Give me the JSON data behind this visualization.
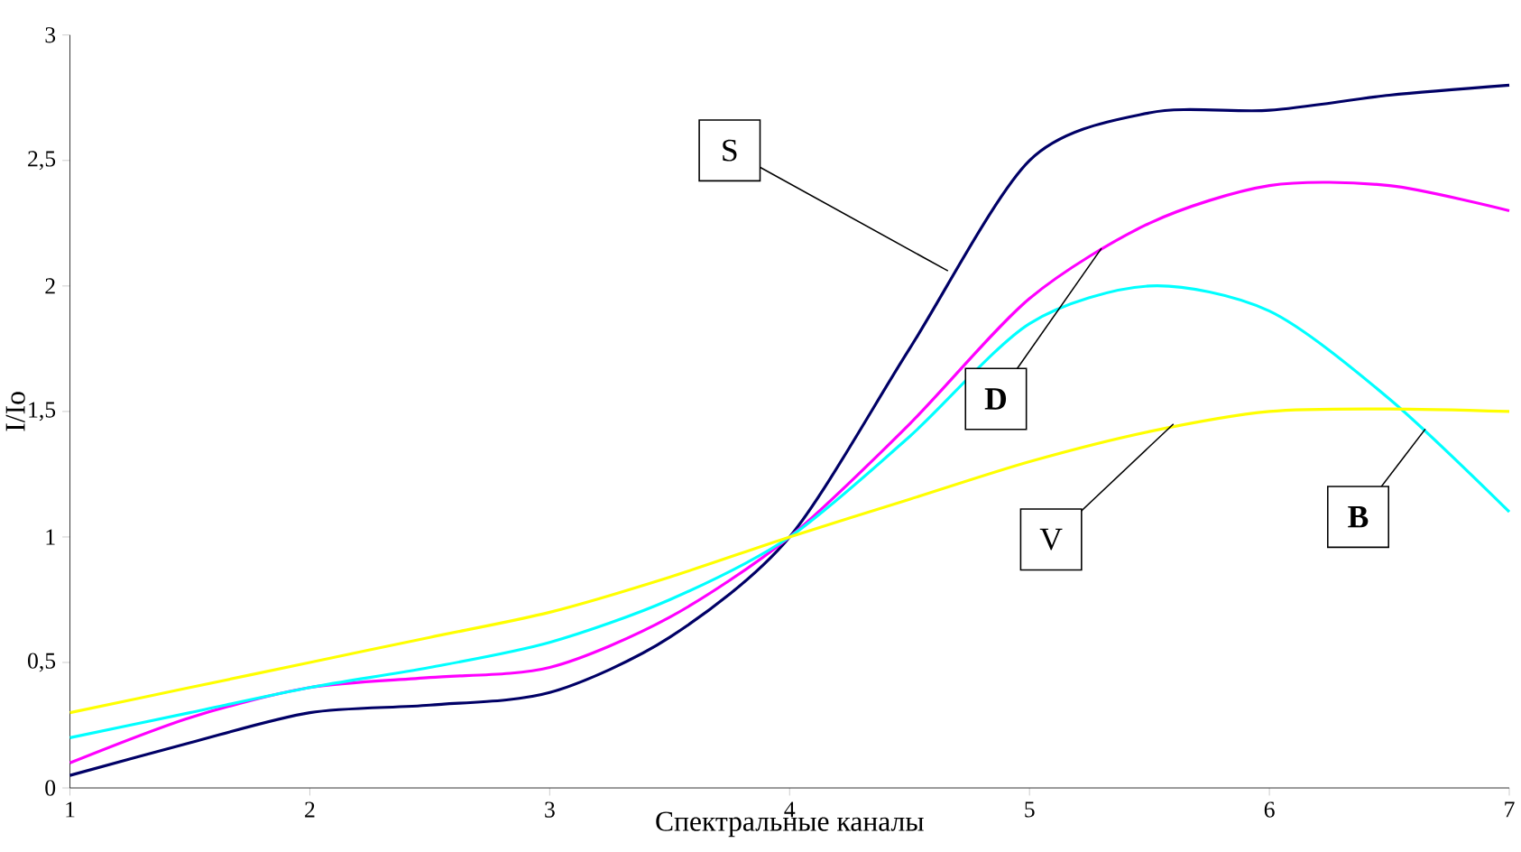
{
  "chart_data": {
    "type": "line",
    "xlabel": "Спектральные каналы",
    "ylabel": "I/Io",
    "x": [
      1,
      1.5,
      2,
      2.5,
      3,
      3.5,
      4,
      4.5,
      5,
      5.5,
      6,
      6.5,
      7
    ],
    "series": [
      {
        "color": "#000066",
        "values": [
          0.05,
          0.18,
          0.3,
          0.33,
          0.38,
          0.6,
          1.0,
          1.75,
          2.5,
          2.69,
          2.7,
          2.76,
          2.8
        ]
      },
      {
        "color": "#ff00ff",
        "values": [
          0.1,
          0.28,
          0.4,
          0.44,
          0.48,
          0.68,
          1.0,
          1.45,
          1.95,
          2.25,
          2.4,
          2.4,
          2.3
        ]
      },
      {
        "color": "#00ffff",
        "values": [
          0.2,
          0.3,
          0.4,
          0.48,
          0.58,
          0.75,
          1.0,
          1.4,
          1.85,
          2.0,
          1.9,
          1.55,
          1.1
        ]
      },
      {
        "color": "#ffff00",
        "values": [
          0.3,
          0.4,
          0.5,
          0.6,
          0.7,
          0.84,
          1.0,
          1.15,
          1.3,
          1.42,
          1.5,
          1.51,
          1.5
        ]
      }
    ],
    "annotations": [
      {
        "text": "S",
        "x": 4.66,
        "y": 2.06
      },
      {
        "text": "D",
        "x": 5.3,
        "y": 2.15
      },
      {
        "text": "B",
        "x": 6.65,
        "y": 1.43
      },
      {
        "text": "V",
        "x": 5.6,
        "y": 1.45
      }
    ],
    "xlim": [
      1,
      7
    ],
    "xticks": [
      1,
      2,
      3,
      4,
      5,
      6,
      7
    ],
    "ylim": [
      0,
      3
    ],
    "yticks": [
      0,
      {
        "value": 0.5,
        "label": "0,5"
      },
      1,
      {
        "value": 1.5,
        "label": "1,5"
      },
      2,
      {
        "value": 2.5,
        "label": "2,5"
      },
      3
    ],
    "grid": false,
    "marker": "none",
    "line_style": "solid"
  }
}
